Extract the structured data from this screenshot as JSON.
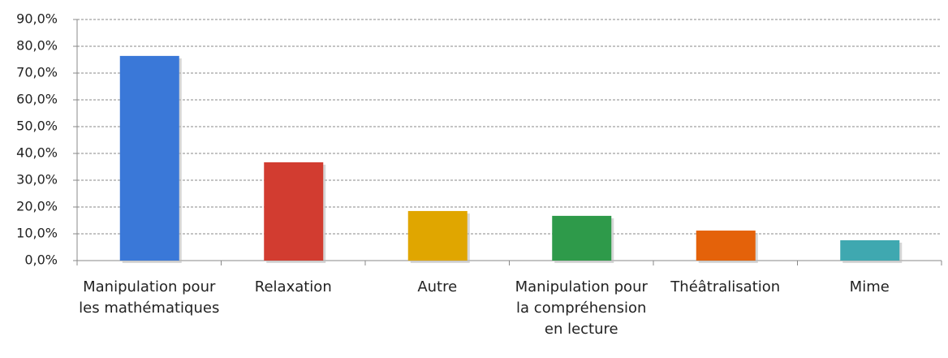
{
  "chart_data": {
    "type": "bar",
    "categories": [
      "Manipulation pour les mathématiques",
      "Relaxation",
      "Autre",
      "Manipulation pour la compréhension en lecture",
      "Théâtralisation",
      "Mime"
    ],
    "values": [
      76.4,
      36.7,
      18.5,
      16.7,
      11.2,
      7.6
    ],
    "colors": [
      "#3a78d8",
      "#d23c30",
      "#e0a600",
      "#2e9a4a",
      "#e4620a",
      "#3fa8b0"
    ],
    "ylim": [
      0,
      90
    ],
    "yticks": [
      {
        "value": 0,
        "label": "0,0%"
      },
      {
        "value": 10,
        "label": "10,0%"
      },
      {
        "value": 20,
        "label": "20,0%"
      },
      {
        "value": 30,
        "label": "30,0%"
      },
      {
        "value": 40,
        "label": "40,0%"
      },
      {
        "value": 50,
        "label": "50,0%"
      },
      {
        "value": 60,
        "label": "60,0%"
      },
      {
        "value": 70,
        "label": "70,0%"
      },
      {
        "value": 80,
        "label": "80,0%"
      },
      {
        "value": 90,
        "label": "90,0%"
      }
    ],
    "grid": true
  }
}
